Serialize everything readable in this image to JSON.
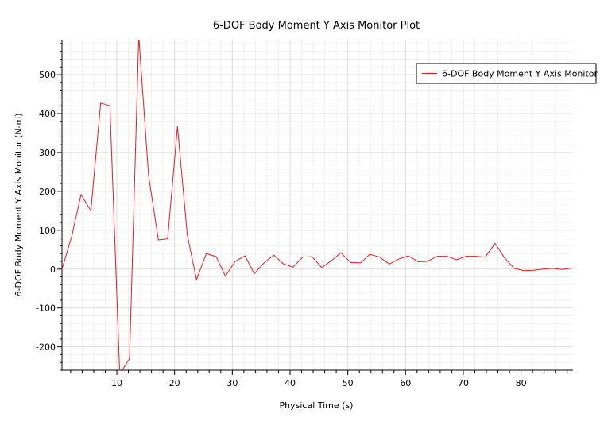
{
  "chart_data": {
    "type": "line",
    "title": "6-DOF Body Moment Y Axis Monitor Plot",
    "xlabel": "Physical Time (s)",
    "ylabel": "6-DOF Body Moment Y Axis Monitor (N-m)",
    "xlim": [
      0.5,
      89
    ],
    "ylim": [
      -260,
      590
    ],
    "xticks": [
      10,
      20,
      30,
      40,
      50,
      60,
      70,
      80
    ],
    "yticks": [
      -200,
      -100,
      0,
      100,
      200,
      300,
      400,
      500
    ],
    "grid": true,
    "legend": "top-right",
    "series": [
      {
        "name": "6-DOF Body Moment Y Axis Monitor",
        "color": "#e8191e",
        "x": [
          0.5,
          2.2,
          3.8,
          5.5,
          7.2,
          8.8,
          10.5,
          12.2,
          13.8,
          15.5,
          17.2,
          18.8,
          20.5,
          22.2,
          23.8,
          25.5,
          27.2,
          28.8,
          30.5,
          32.2,
          33.8,
          35.5,
          37.2,
          38.8,
          40.5,
          42.2,
          43.8,
          45.5,
          47.2,
          48.8,
          50.5,
          52.2,
          53.8,
          55.5,
          57.2,
          58.8,
          60.5,
          62.2,
          63.8,
          65.5,
          67.2,
          68.8,
          70.5,
          72.2,
          73.8,
          75.5,
          77.2,
          78.8,
          80.5,
          82.2,
          83.8,
          85.5,
          87.2,
          89.0
        ],
        "y": [
          0,
          85,
          192,
          150,
          427,
          420,
          -270,
          -230,
          600,
          240,
          75,
          78,
          367,
          88,
          -27,
          40,
          32,
          -18,
          20,
          34,
          -12,
          16,
          36,
          14,
          5,
          31,
          32,
          4,
          22,
          42,
          17,
          16,
          38,
          31,
          13,
          26,
          34,
          19,
          20,
          33,
          33,
          24,
          33,
          33,
          31,
          66,
          28,
          2,
          -4,
          -3,
          0,
          2,
          -1,
          3
        ]
      }
    ]
  }
}
